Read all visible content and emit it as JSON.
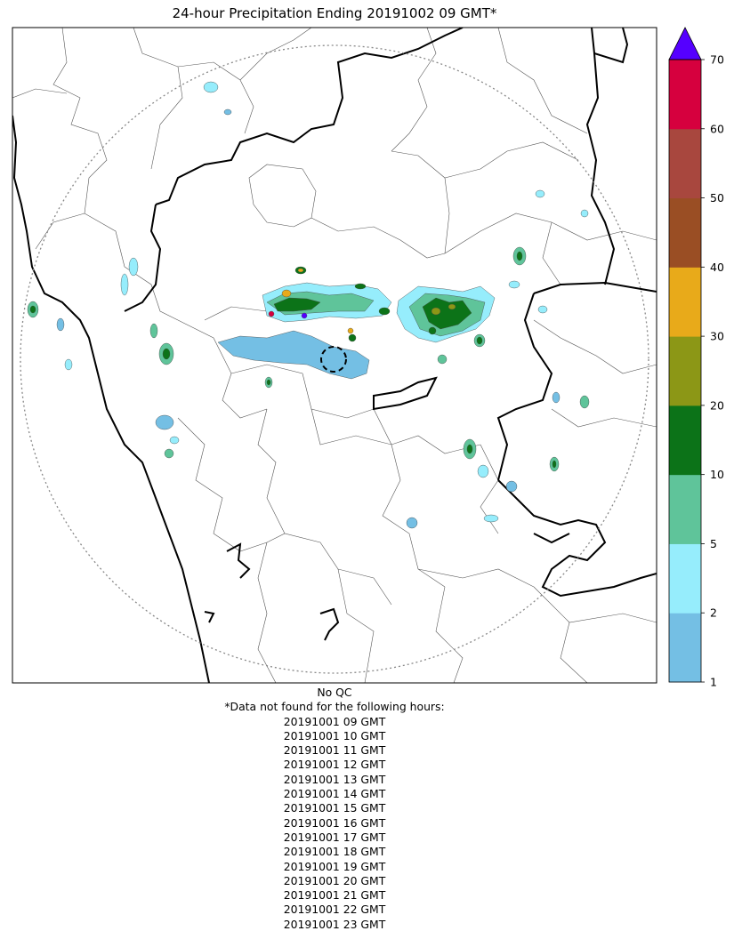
{
  "title": "24-hour Precipitation Ending 20191002 09 GMT*",
  "colorbar": {
    "ticks": [
      "1",
      "2",
      "5",
      "10",
      "20",
      "30",
      "40",
      "50",
      "60",
      "70"
    ],
    "colors": [
      "#74bfe4",
      "#96edfc",
      "#5fc49a",
      "#0c7318",
      "#8c9716",
      "#e8aa1a",
      "#9a4e24",
      "#a8473e",
      "#d6003e"
    ],
    "extend_max_color": "#5500ff"
  },
  "notes": {
    "qc": "No QC",
    "missing_header": "*Data not found for the following hours:",
    "missing_hours": [
      "20191001 09 GMT",
      "20191001 10 GMT",
      "20191001 11 GMT",
      "20191001 12 GMT",
      "20191001 13 GMT",
      "20191001 14 GMT",
      "20191001 15 GMT",
      "20191001 16 GMT",
      "20191001 17 GMT",
      "20191001 18 GMT",
      "20191001 19 GMT",
      "20191001 20 GMT",
      "20191001 21 GMT",
      "20191001 22 GMT",
      "20191001 23 GMT"
    ]
  }
}
